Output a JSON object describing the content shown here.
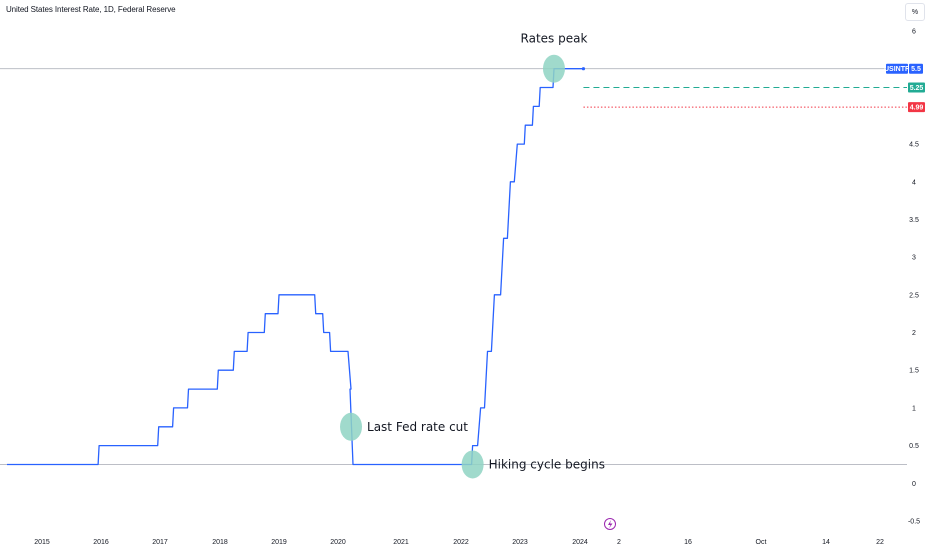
{
  "header": {
    "title": "United States Interest Rate, 1D, Federal Reserve",
    "unit_button": "%"
  },
  "colors": {
    "line": "#2962ff",
    "green": "#22ab94",
    "red": "#f23645",
    "marker": "#8fd3c3",
    "grid": "#b2b5be",
    "event": "#9c27b0"
  },
  "event_icon": "lightning-icon",
  "chart_data": {
    "type": "line",
    "series": [
      {
        "name": "USINTR",
        "x": [
          "2014-06-01",
          "2015-12-16",
          "2016-12-14",
          "2017-03-15",
          "2017-06-14",
          "2017-12-13",
          "2018-03-21",
          "2018-06-13",
          "2018-09-26",
          "2018-12-19",
          "2019-07-31",
          "2019-09-18",
          "2019-10-30",
          "2020-03-03",
          "2020-03-15",
          "2022-03-16",
          "2022-05-04",
          "2022-06-15",
          "2022-07-27",
          "2022-09-21",
          "2022-11-02",
          "2022-12-14",
          "2023-02-01",
          "2023-03-22",
          "2023-05-03",
          "2023-07-26",
          "2024-01-22"
        ],
        "y": [
          0.25,
          0.5,
          0.75,
          1.0,
          1.25,
          1.5,
          1.75,
          2.0,
          2.25,
          2.5,
          2.25,
          2.0,
          1.75,
          1.25,
          0.25,
          0.5,
          1.0,
          1.75,
          2.5,
          3.25,
          4.0,
          4.5,
          4.75,
          5.0,
          5.25,
          5.5,
          5.5
        ]
      }
    ],
    "forecast_lines": [
      {
        "value": 5.25,
        "label": "5.25",
        "color": "#22ab94",
        "style": "dashed"
      },
      {
        "value": 4.99,
        "label": "4.99",
        "color": "#f23645",
        "style": "dotted"
      }
    ],
    "last_value_label": {
      "name": "USINTR",
      "value": "5.5"
    },
    "yticks": [
      "6",
      "5.5",
      "5",
      "4.5",
      "4",
      "3.5",
      "3",
      "2.5",
      "2",
      "1.5",
      "1",
      "0.5",
      "0",
      "-0.5"
    ],
    "ylim": [
      -0.5,
      6
    ],
    "xticks": [
      "2015",
      "2016",
      "2017",
      "2018",
      "2019",
      "2020",
      "2021",
      "2022",
      "2023",
      "2024",
      "2",
      "16",
      "Oct",
      "14",
      "22"
    ],
    "annotations": [
      {
        "text": "Rates peak",
        "x": "2023-07-26",
        "y": 5.5
      },
      {
        "text": "Last Fed rate cut",
        "x": "2020-03-03",
        "y": 0.75
      },
      {
        "text": "Hiking cycle begins",
        "x": "2022-03-16",
        "y": 0.25
      }
    ],
    "reference_line": 0.25,
    "grid": false
  }
}
